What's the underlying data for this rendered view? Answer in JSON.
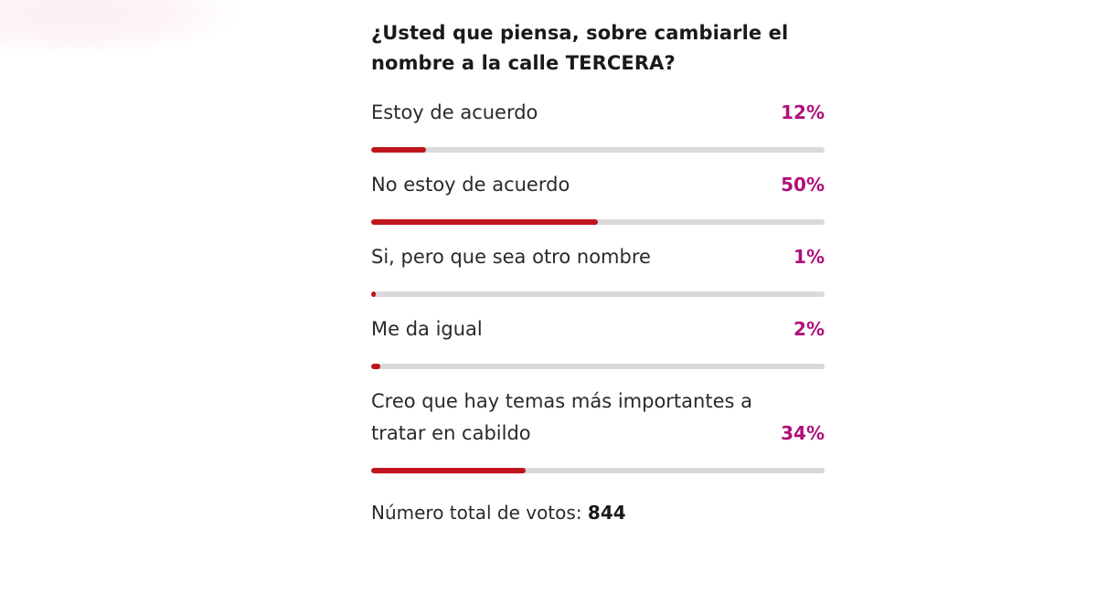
{
  "poll": {
    "question": "¿Usted que piensa, sobre cambiarle el nombre a la calle TERCERA?",
    "options": [
      {
        "label": "Estoy de acuerdo",
        "percent_label": "12%",
        "percent": 12
      },
      {
        "label": "No estoy de acuerdo",
        "percent_label": "50%",
        "percent": 50
      },
      {
        "label": "Si, pero que sea otro nombre",
        "percent_label": "1%",
        "percent": 1
      },
      {
        "label": "Me da igual",
        "percent_label": "2%",
        "percent": 2
      },
      {
        "label": "Creo que hay temas más importantes a tratar en cabildo",
        "percent_label": "34%",
        "percent": 34
      }
    ],
    "total_label": "Número total de votos:",
    "total_votes": "844"
  },
  "colors": {
    "bar_fill": "#c0141c",
    "bar_track": "#d9d9d9",
    "percent_text": "#b0107a"
  }
}
